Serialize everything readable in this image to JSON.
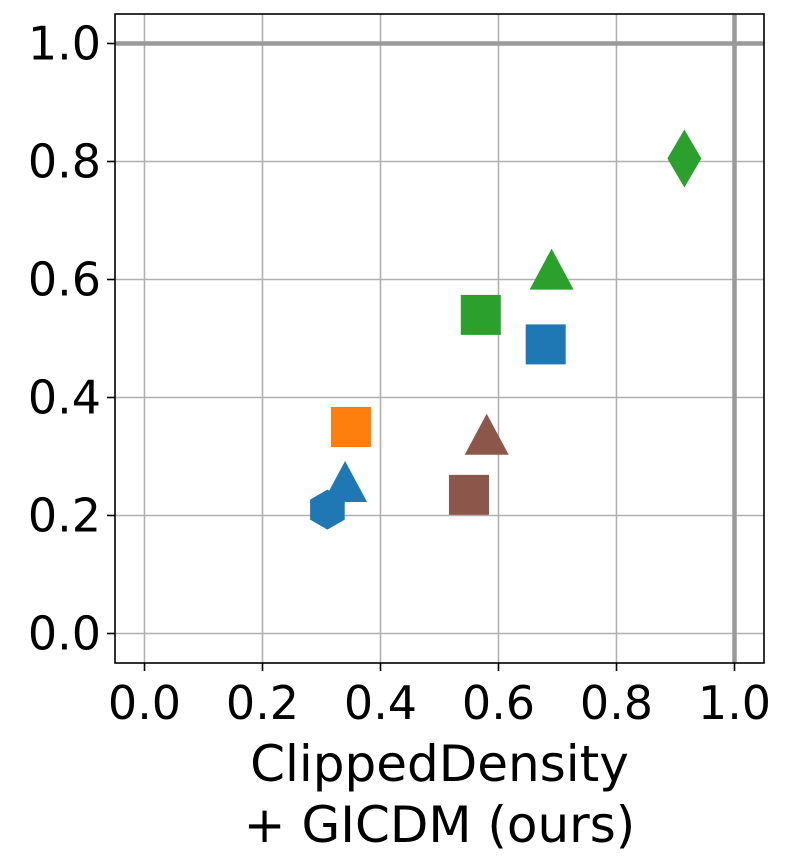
{
  "chart_data": {
    "type": "scatter",
    "xlabel_lines": [
      "ClippedDensity",
      "+ GICDM (ours)"
    ],
    "ylabel": "",
    "xlim": [
      -0.05,
      1.05
    ],
    "ylim": [
      -0.05,
      1.05
    ],
    "x_ticks": [
      0.0,
      0.2,
      0.4,
      0.6,
      0.8,
      1.0
    ],
    "y_ticks": [
      0.0,
      0.2,
      0.4,
      0.6,
      0.8,
      1.0
    ],
    "x_tick_labels": [
      "0.0",
      "0.2",
      "0.4",
      "0.6",
      "0.8",
      "1.0"
    ],
    "y_tick_labels": [
      "0.0",
      "0.2",
      "0.4",
      "0.6",
      "0.8",
      "1.0"
    ],
    "grid": true,
    "reference_lines": [
      {
        "orientation": "horizontal",
        "value": 1.0
      },
      {
        "orientation": "vertical",
        "value": 1.0
      }
    ],
    "colors": {
      "blue": "#1f77b4",
      "orange": "#ff7f0e",
      "green": "#2ca02c",
      "brown": "#8c564b",
      "grid": "#b0b0b0",
      "reference": "#999999"
    },
    "points": [
      {
        "x": 0.31,
        "y": 0.21,
        "marker": "hexagon",
        "color": "#1f77b4"
      },
      {
        "x": 0.34,
        "y": 0.25,
        "marker": "triangle",
        "color": "#1f77b4"
      },
      {
        "x": 0.35,
        "y": 0.35,
        "marker": "square",
        "color": "#ff7f0e"
      },
      {
        "x": 0.55,
        "y": 0.235,
        "marker": "square",
        "color": "#8c564b"
      },
      {
        "x": 0.58,
        "y": 0.33,
        "marker": "triangle",
        "color": "#8c564b"
      },
      {
        "x": 0.57,
        "y": 0.54,
        "marker": "square",
        "color": "#2ca02c"
      },
      {
        "x": 0.68,
        "y": 0.49,
        "marker": "square",
        "color": "#1f77b4"
      },
      {
        "x": 0.69,
        "y": 0.61,
        "marker": "triangle",
        "color": "#2ca02c"
      },
      {
        "x": 0.915,
        "y": 0.805,
        "marker": "diamond",
        "color": "#2ca02c"
      }
    ]
  }
}
